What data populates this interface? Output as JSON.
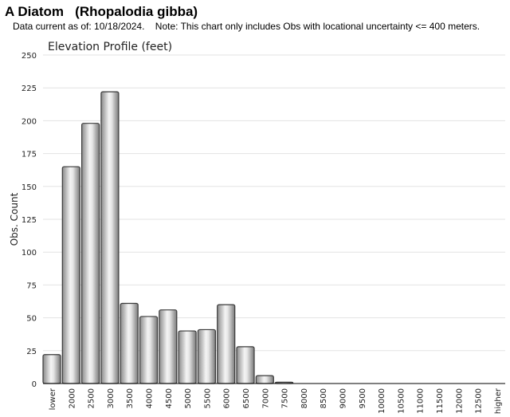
{
  "page": {
    "title": "A Diatom   (Rhopalodia gibba)",
    "subtitle": "Data current as of: 10/18/2024.    Note: This chart only includes Obs with locational uncertainty <= 400 meters."
  },
  "chart_data": {
    "type": "bar",
    "title": "Elevation Profile (feet)",
    "xlabel": "",
    "ylabel": "Obs. Count",
    "ylim": [
      0,
      250
    ],
    "yticks": [
      0,
      25,
      50,
      75,
      100,
      125,
      150,
      175,
      200,
      225,
      250
    ],
    "grid": true,
    "categories": [
      "lower",
      "2000",
      "2500",
      "3000",
      "3500",
      "4000",
      "4500",
      "5000",
      "5500",
      "6000",
      "6500",
      "7000",
      "7500",
      "8000",
      "8500",
      "9000",
      "9500",
      "10000",
      "10500",
      "11000",
      "11500",
      "12000",
      "12500",
      "higher"
    ],
    "values": [
      22,
      165,
      198,
      222,
      61,
      51,
      56,
      40,
      41,
      60,
      28,
      6,
      1,
      0,
      0,
      0,
      0,
      0,
      0,
      0,
      0,
      0,
      0,
      0
    ]
  }
}
